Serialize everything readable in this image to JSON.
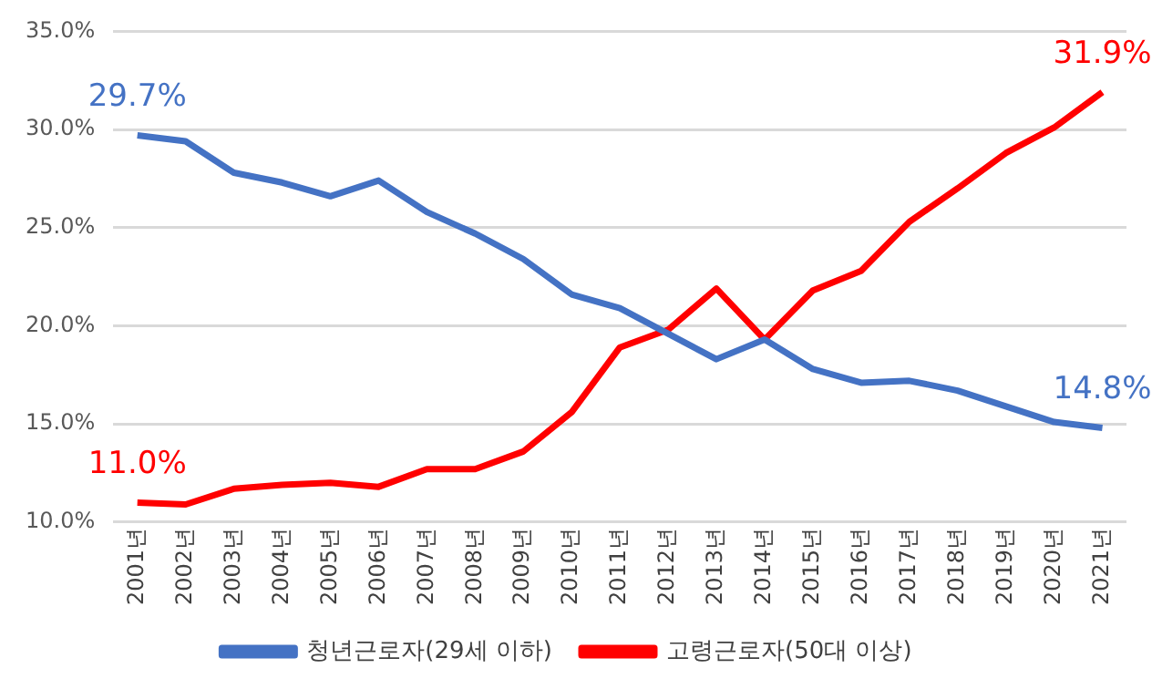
{
  "chart_data": {
    "type": "line",
    "categories": [
      "2001년",
      "2002년",
      "2003년",
      "2004년",
      "2005년",
      "2006년",
      "2007년",
      "2008년",
      "2009년",
      "2010년",
      "2011년",
      "2012년",
      "2013년",
      "2014년",
      "2015년",
      "2016년",
      "2017년",
      "2018년",
      "2019년",
      "2020년",
      "2021년"
    ],
    "series": [
      {
        "name": "청년근로자(29세 이하)",
        "color": "#4472c4",
        "values": [
          29.7,
          29.4,
          27.8,
          27.3,
          26.6,
          27.4,
          25.8,
          24.7,
          23.4,
          21.6,
          20.9,
          19.6,
          18.3,
          19.3,
          17.8,
          17.1,
          17.2,
          16.7,
          15.9,
          15.1,
          14.8
        ],
        "value_labels": [
          "29.7%",
          null,
          null,
          null,
          null,
          null,
          null,
          null,
          null,
          null,
          null,
          null,
          null,
          null,
          null,
          null,
          null,
          null,
          null,
          null,
          "14.8%"
        ]
      },
      {
        "name": "고령근로자(50대 이상)",
        "color": "#ff0000",
        "values": [
          11.0,
          10.9,
          11.7,
          11.9,
          12.0,
          11.8,
          12.7,
          12.7,
          13.6,
          15.6,
          18.9,
          19.8,
          21.9,
          19.3,
          21.8,
          22.8,
          25.3,
          27.0,
          28.8,
          30.1,
          31.9
        ],
        "value_labels": [
          "11.0%",
          null,
          null,
          null,
          null,
          null,
          null,
          null,
          null,
          null,
          null,
          null,
          null,
          null,
          null,
          null,
          null,
          null,
          null,
          null,
          "31.9%"
        ]
      }
    ],
    "ylim": [
      10,
      35
    ],
    "yticks": [
      {
        "value": 10,
        "label": "10.0%"
      },
      {
        "value": 15,
        "label": "15.0%"
      },
      {
        "value": 20,
        "label": "20.0%"
      },
      {
        "value": 25,
        "label": "25.0%"
      },
      {
        "value": 30,
        "label": "30.0%"
      },
      {
        "value": 35,
        "label": "35.0%"
      }
    ],
    "grid": "y",
    "legend": "bottom",
    "marker": "none",
    "line_style": "solid"
  }
}
